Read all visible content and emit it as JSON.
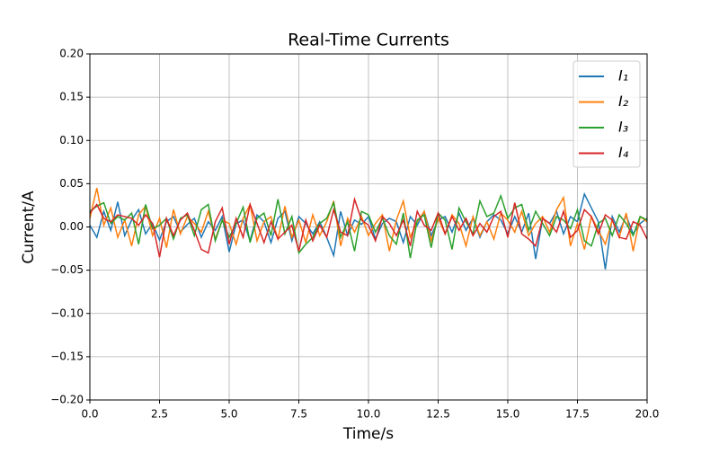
{
  "chart_data": {
    "type": "line",
    "title": "Real-Time Currents",
    "x_label": "Time/s",
    "y_label": "Current/A",
    "x": [
      0,
      0.25,
      0.5,
      0.75,
      1,
      1.25,
      1.5,
      1.75,
      2,
      2.25,
      2.5,
      2.75,
      3,
      3.25,
      3.5,
      3.75,
      4,
      4.25,
      4.5,
      4.75,
      5,
      5.25,
      5.5,
      5.75,
      6,
      6.25,
      6.5,
      6.75,
      7,
      7.25,
      7.5,
      7.75,
      8,
      8.25,
      8.5,
      8.75,
      9,
      9.25,
      9.5,
      9.75,
      10,
      10.25,
      10.5,
      10.75,
      11,
      11.25,
      11.5,
      11.75,
      12,
      12.25,
      12.5,
      12.75,
      13,
      13.25,
      13.5,
      13.75,
      14,
      14.25,
      14.5,
      14.75,
      15,
      15.25,
      15.5,
      15.75,
      16,
      16.25,
      16.5,
      16.75,
      17,
      17.25,
      17.5,
      17.75,
      18,
      18.25,
      18.5,
      18.75,
      19,
      19.25,
      19.5,
      19.75,
      20
    ],
    "series": [
      {
        "name": "I₁",
        "color": "#1f77b4",
        "values": [
          0.002,
          -0.012,
          0.018,
          -0.004,
          0.029,
          -0.01,
          0.008,
          0.02,
          -0.008,
          0.004,
          -0.015,
          0.006,
          0.012,
          -0.006,
          0.003,
          0.01,
          -0.012,
          0.006,
          -0.004,
          0.012,
          -0.029,
          0.004,
          0.008,
          -0.016,
          0.014,
          0.006,
          -0.018,
          0.01,
          0.018,
          -0.016,
          0.012,
          0.004,
          -0.008,
          0.006,
          -0.012,
          -0.033,
          0.018,
          -0.01,
          0.008,
          0.003,
          0.012,
          -0.014,
          0.004,
          0.01,
          0.006,
          -0.018,
          0.012,
          0.002,
          0.018,
          -0.01,
          0.008,
          0.012,
          -0.006,
          0.016,
          -0.004,
          0.01,
          -0.012,
          0.006,
          0.014,
          0.008,
          -0.008,
          0.012,
          -0.006,
          0.016,
          -0.037,
          0.01,
          0.004,
          0.018,
          -0.008,
          0.012,
          0.006,
          0.038,
          0.022,
          0.006,
          -0.049,
          0.012,
          -0.006,
          0.013,
          -0.008,
          0.004,
          0.01
        ]
      },
      {
        "name": "I₂",
        "color": "#ff7f0e",
        "values": [
          0.01,
          0.045,
          0.002,
          0.022,
          -0.012,
          0.008,
          -0.022,
          0.014,
          0.024,
          -0.01,
          0.01,
          -0.024,
          0.02,
          -0.008,
          0.012,
          0.004,
          -0.006,
          0.018,
          -0.014,
          0.008,
          0.004,
          -0.02,
          0.01,
          0.026,
          -0.016,
          0.006,
          0.012,
          -0.014,
          0.024,
          -0.012,
          0.008,
          -0.018,
          0.014,
          -0.01,
          0.006,
          0.03,
          -0.022,
          0.01,
          -0.006,
          0.012,
          -0.01,
          0.004,
          0.014,
          -0.028,
          0.008,
          0.03,
          -0.012,
          0.006,
          0.018,
          -0.016,
          0.01,
          -0.008,
          0.014,
          0.004,
          -0.022,
          0.012,
          -0.01,
          0.006,
          -0.014,
          0.016,
          0.008,
          -0.006,
          0.018,
          -0.01,
          0.004,
          0.012,
          -0.006,
          0.02,
          0.034,
          -0.022,
          0.004,
          -0.026,
          0.012,
          -0.004,
          -0.02,
          0.008,
          -0.012,
          0.016,
          -0.028,
          0.012,
          0.006
        ]
      },
      {
        "name": "I₃",
        "color": "#2ca02c",
        "values": [
          0.018,
          0.024,
          0.028,
          0.004,
          0.012,
          0.008,
          0.016,
          -0.02,
          0.026,
          -0.002,
          0.002,
          0.01,
          -0.014,
          0.01,
          0.014,
          -0.01,
          0.02,
          0.026,
          -0.016,
          0.008,
          -0.012,
          0.004,
          0.023,
          -0.018,
          0.01,
          0.016,
          -0.01,
          0.032,
          -0.008,
          0.012,
          -0.03,
          -0.02,
          -0.012,
          0.004,
          0.01,
          0.028,
          -0.012,
          0.006,
          -0.028,
          0.018,
          0.014,
          -0.006,
          0.01,
          -0.01,
          -0.02,
          0.016,
          -0.036,
          0.008,
          0.014,
          -0.024,
          0.016,
          0.008,
          -0.026,
          0.022,
          0.006,
          -0.008,
          0.03,
          0.012,
          0.016,
          0.036,
          0.01,
          0.022,
          0.026,
          -0.004,
          0.018,
          0.004,
          -0.01,
          0.012,
          0.008,
          -0.002,
          0.02,
          -0.016,
          -0.022,
          0.004,
          0.01,
          -0.01,
          0.014,
          0.004,
          -0.01,
          0.012,
          0.008
        ]
      },
      {
        "name": "I₄",
        "color": "#d62728",
        "values": [
          0.016,
          0.026,
          0.01,
          0.006,
          0.014,
          0.012,
          0.01,
          0.002,
          0.014,
          0.004,
          -0.035,
          0.01,
          -0.01,
          0.008,
          0.016,
          -0.004,
          -0.026,
          -0.03,
          0.006,
          0.022,
          -0.02,
          0.01,
          -0.012,
          0.026,
          0.004,
          -0.018,
          0.006,
          -0.014,
          -0.006,
          0.002,
          -0.028,
          0.008,
          -0.016,
          0.002,
          -0.012,
          0.02,
          -0.006,
          -0.01,
          0.032,
          0.008,
          0.002,
          -0.016,
          0.012,
          0.004,
          -0.01,
          0.008,
          -0.022,
          0.018,
          0.002,
          -0.004,
          0.016,
          -0.008,
          0.012,
          -0.004,
          0.01,
          -0.01,
          0.004,
          -0.006,
          0.012,
          0.018,
          -0.012,
          0.028,
          -0.008,
          -0.014,
          -0.022,
          0.01,
          0.004,
          -0.006,
          0.018,
          -0.012,
          -0.004,
          0.02,
          0.012,
          -0.008,
          0.014,
          0.008,
          -0.012,
          -0.014,
          0.006,
          0.002,
          -0.014
        ]
      }
    ],
    "xlim": [
      0,
      20
    ],
    "xticks": [
      {
        "value": 0,
        "label": "0.0"
      },
      2.5,
      {
        "value": 5,
        "label": "5.0"
      },
      7.5,
      {
        "value": 10,
        "label": "10.0"
      },
      12.5,
      {
        "value": 15,
        "label": "15.0"
      },
      17.5,
      {
        "value": 20,
        "label": "20.0"
      }
    ],
    "ylim": [
      -0.2,
      0.2
    ],
    "yticks": [
      {
        "value": -0.2,
        "label": "−0.20"
      },
      {
        "value": -0.15,
        "label": "−0.15"
      },
      {
        "value": -0.1,
        "label": "−0.10"
      },
      {
        "value": -0.05,
        "label": "−0.05"
      },
      {
        "value": 0,
        "label": "0.00"
      },
      0.05,
      {
        "value": 0.1,
        "label": "0.10"
      },
      0.15,
      {
        "value": 0.2,
        "label": "0.20"
      }
    ],
    "grid": true,
    "legend": "upper right"
  }
}
